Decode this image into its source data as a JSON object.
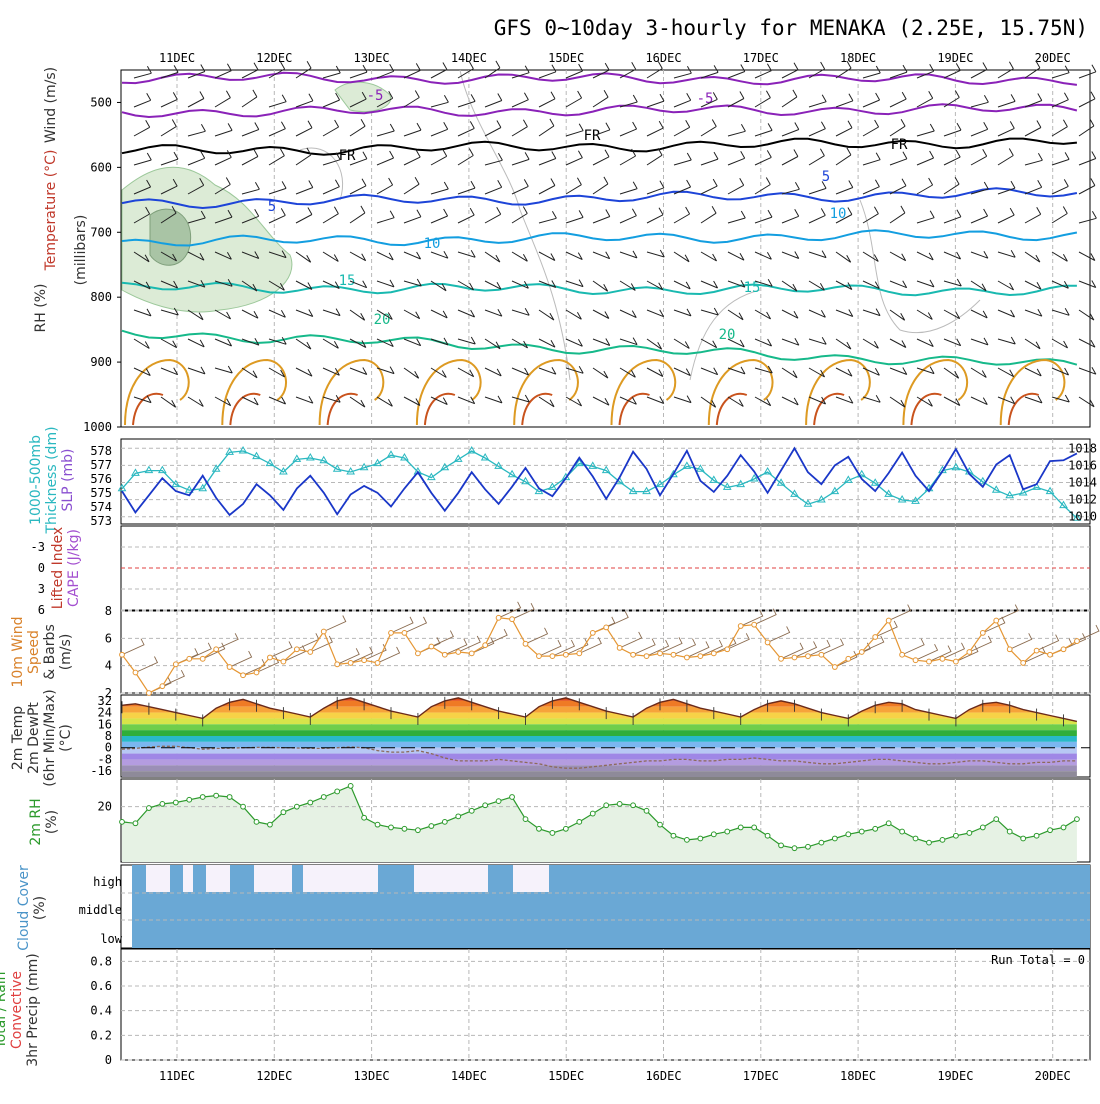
{
  "title": "GFS 0~10day 3-hourly for MENAKA (2.25E, 15.75N)",
  "colors": {
    "purple": "#8a22b8",
    "black": "#000000",
    "blue": "#1d44d8",
    "lightblue": "#139ee0",
    "teal": "#19b9b0",
    "green": "#16b98a",
    "orange": "#dd9a22",
    "dark_orange": "#c9531d",
    "slp": "#1a37c8",
    "thickness": "#2ab8c0",
    "wind10m": "#e59633",
    "barb": "#8a6b4f",
    "rh": "#2c9a2c",
    "rh_fill": "#e6f2e4",
    "cloud": "#6aa8d5",
    "cloud_gap": "#f6f2fb",
    "grid": "#b8b8b8",
    "dewpt": "#8c6a5a"
  },
  "chart_data": [
    {
      "panel": "upper-air",
      "type": "line",
      "x_labels": [
        "11DEC",
        "12DEC",
        "13DEC",
        "14DEC",
        "15DEC",
        "16DEC",
        "17DEC",
        "18DEC",
        "19DEC",
        "20DEC"
      ],
      "ylabel": "(millibars)",
      "side_labels": [
        "Wind (m/s)",
        "Temperature (°C)",
        "RH (%)"
      ],
      "yticks": [
        500,
        600,
        700,
        800,
        900,
        1000
      ],
      "ylim": [
        1000,
        450
      ],
      "contour_labels": [
        {
          "text": "-5",
          "series": "-5"
        },
        {
          "text": "-5",
          "series": "-5"
        },
        {
          "text": "FR",
          "series": "FR"
        },
        {
          "text": "FR",
          "series": "FR"
        },
        {
          "text": "FR",
          "series": "FR"
        },
        {
          "text": "5",
          "series": "5"
        },
        {
          "text": "5",
          "series": "5"
        },
        {
          "text": "10",
          "series": "10"
        },
        {
          "text": "10",
          "series": "10"
        },
        {
          "text": "15",
          "series": "15"
        },
        {
          "text": "15",
          "series": "15"
        },
        {
          "text": "20",
          "series": "20"
        },
        {
          "text": "20",
          "series": "20"
        }
      ],
      "isotherms": [
        {
          "name": "-5",
          "color": "purple",
          "p_start": 515,
          "p_end": 510
        },
        {
          "name": "-5",
          "color": "purple",
          "p_start": 462,
          "p_end": 465
        },
        {
          "name": "FR",
          "color": "black",
          "p_start": 575,
          "p_end": 560
        },
        {
          "name": "5",
          "color": "blue",
          "p_start": 655,
          "p_end": 640
        },
        {
          "name": "10",
          "color": "lightblue",
          "p_start": 715,
          "p_end": 703
        },
        {
          "name": "15",
          "color": "teal",
          "p_start": 785,
          "p_end": 790
        },
        {
          "name": "20",
          "color": "green",
          "p_start": 855,
          "p_end": 905
        }
      ]
    },
    {
      "panel": "thickness-slp",
      "type": "line",
      "side_labels": [
        "1000-500mb",
        "Thickness (dm)",
        "SLP (mb)"
      ],
      "left_ticks": [
        573,
        574,
        575,
        576,
        577,
        578
      ],
      "right_ticks": [
        1010,
        1012,
        1014,
        1016,
        1018
      ],
      "series": [
        {
          "name": "SLP",
          "color": "slp",
          "values": [
            1013,
            1010.5,
            1012.5,
            1014.5,
            1013,
            1012.5,
            1014.8,
            1012.2,
            1010.2,
            1011.5,
            1013.8,
            1012.5,
            1010.8,
            1013.3,
            1014.8,
            1012.8,
            1010.3,
            1012.6,
            1013.6,
            1012.8,
            1011.2,
            1013.3,
            1015.2,
            1012.8,
            1010.7,
            1012.8,
            1015.2,
            1013.2,
            1011.5,
            1013.5,
            1015.7,
            1013.3,
            1012.4,
            1014.5,
            1016.9,
            1014.7,
            1012.1,
            1014.6,
            1017.6,
            1015.6,
            1012.5,
            1015.0,
            1017.7,
            1014.2,
            1012.9,
            1014.8,
            1017.2,
            1015.3,
            1012.8,
            1015.4,
            1018.0,
            1015.2,
            1013.8,
            1016.0,
            1017.0,
            1014.4,
            1013.0,
            1015.1,
            1017.5,
            1014.8,
            1013.0,
            1015.3,
            1017.9,
            1015.0,
            1013.5,
            1016.1,
            1017.2,
            1013.2,
            1013.8,
            1016.5,
            1016.6,
            1017.4
          ]
        },
        {
          "name": "Thickness",
          "color": "thickness",
          "values": [
            575.3,
            576.4,
            576.6,
            576.6,
            575.6,
            575.2,
            575.3,
            576.7,
            577.9,
            578.0,
            577.6,
            577.1,
            576.5,
            577.4,
            577.5,
            577.3,
            576.7,
            576.5,
            576.8,
            577.1,
            577.7,
            577.5,
            576.5,
            576.1,
            576.8,
            577.4,
            578.0,
            577.5,
            576.9,
            576.3,
            575.8,
            575.1,
            575.4,
            576.1,
            577.1,
            576.9,
            576.6,
            575.8,
            575.1,
            575.1,
            575.6,
            576.3,
            576.9,
            576.7,
            575.9,
            575.4,
            575.6,
            576.0,
            576.5,
            575.7,
            574.9,
            574.2,
            574.5,
            575.1,
            575.9,
            576.3,
            575.7,
            574.9,
            574.5,
            574.4,
            575.3,
            576.6,
            576.8,
            576.5,
            575.8,
            575.2,
            574.8,
            575.0,
            575.4,
            575.1,
            574.1,
            573.2
          ]
        }
      ]
    },
    {
      "panel": "instability",
      "type": "line",
      "side_labels": [
        "Lifted Index",
        "CAPE (J/kg)"
      ],
      "yticks": [
        -3,
        0,
        3,
        6
      ],
      "ylim": [
        -6,
        6
      ],
      "zero_line": 0
    },
    {
      "panel": "surface-wind",
      "type": "line",
      "side_labels": [
        "10m Wind",
        "Speed",
        "& Barbs",
        "(m/s)"
      ],
      "yticks": [
        2,
        4,
        6,
        8
      ],
      "ylim": [
        2,
        8
      ],
      "series": [
        {
          "name": "Speed",
          "color": "wind10m",
          "values": [
            4.8,
            3.5,
            2.0,
            2.5,
            4.1,
            4.5,
            4.5,
            5.2,
            3.9,
            3.3,
            3.5,
            4.6,
            4.3,
            5.2,
            5.0,
            6.5,
            4.1,
            4.2,
            4.4,
            4.2,
            6.4,
            6.4,
            4.9,
            5.4,
            4.8,
            5.0,
            4.9,
            5.5,
            7.5,
            7.4,
            5.6,
            4.7,
            4.7,
            4.8,
            4.9,
            6.4,
            6.8,
            5.3,
            4.8,
            4.7,
            4.9,
            4.8,
            4.6,
            4.7,
            4.9,
            5.2,
            6.9,
            7.0,
            5.7,
            4.5,
            4.6,
            4.7,
            4.8,
            3.9,
            4.5,
            5.0,
            6.1,
            7.3,
            4.8,
            4.4,
            4.3,
            4.5,
            4.3,
            5.0,
            6.4,
            7.3,
            5.2,
            4.2,
            5.1,
            4.8,
            5.2,
            5.8
          ]
        }
      ]
    },
    {
      "panel": "temperature",
      "type": "area",
      "side_labels": [
        "2m Temp",
        "2m DewPt",
        "(6hr Min/Max)",
        "(°C)"
      ],
      "yticks": [
        -16,
        -8,
        0,
        8,
        16,
        24,
        32
      ],
      "ylim": [
        -20,
        36
      ],
      "series": [
        {
          "name": "2m Temp",
          "values": [
            29,
            30,
            28,
            26,
            24,
            22,
            20,
            27,
            31,
            33,
            30,
            27,
            25,
            23,
            21,
            27,
            32,
            34,
            31,
            28,
            25,
            23,
            21,
            28,
            32,
            34,
            31,
            28,
            25,
            23,
            21,
            28,
            32,
            34,
            31,
            28,
            25,
            23,
            21,
            27,
            31,
            33,
            30,
            27,
            25,
            23,
            21,
            26,
            30,
            32,
            30,
            27,
            24,
            22,
            20,
            25,
            29,
            31,
            30,
            26,
            24,
            22,
            20,
            26,
            30,
            31,
            29,
            26,
            24,
            22,
            20,
            18
          ]
        },
        {
          "name": "2m DewPt",
          "values": [
            -1,
            -0.5,
            0.5,
            1,
            1,
            0,
            -1,
            -0.5,
            -0.3,
            0,
            0.2,
            0.2,
            0,
            -0.2,
            -0.5,
            -0.5,
            0,
            0.5,
            0,
            -2,
            -3,
            -3,
            -2,
            -4,
            -7,
            -9,
            -9,
            -9,
            -8,
            -9,
            -10,
            -11,
            -13,
            -14,
            -14,
            -13,
            -12,
            -11,
            -10,
            -9,
            -9,
            -8,
            -8,
            -9,
            -9,
            -8,
            -8,
            -7,
            -8,
            -9,
            -9,
            -10,
            -11,
            -11,
            -10,
            -9,
            -8,
            -8,
            -9,
            -10,
            -11,
            -11,
            -10,
            -9,
            -9,
            -10,
            -11,
            -11,
            -10,
            -10,
            -9,
            -9
          ]
        }
      ]
    },
    {
      "panel": "relative-humidity",
      "type": "area",
      "side_labels": [
        "2m RH",
        "(%)"
      ],
      "yticks": [
        20
      ],
      "ylim": [
        0,
        30
      ],
      "series": [
        {
          "name": "2m RH",
          "color": "rh",
          "values": [
            14.5,
            14.0,
            19.5,
            21.0,
            21.5,
            22.5,
            23.5,
            24.0,
            23.5,
            20.0,
            14.5,
            13.5,
            18.0,
            20.0,
            21.5,
            23.5,
            25.5,
            27.5,
            16.0,
            13.5,
            12.5,
            12.0,
            11.5,
            13.0,
            14.5,
            16.5,
            18.5,
            20.5,
            22.0,
            23.5,
            15.5,
            12.0,
            10.5,
            12.0,
            14.5,
            17.5,
            20.5,
            21.0,
            20.5,
            18.5,
            13.5,
            9.5,
            8.0,
            8.5,
            10.0,
            11.0,
            12.5,
            12.5,
            9.5,
            6.0,
            5.0,
            5.5,
            7.0,
            8.5,
            10.0,
            11.0,
            12.0,
            14.0,
            11.0,
            8.5,
            7.0,
            8.0,
            9.5,
            10.5,
            12.5,
            15.5,
            11.0,
            8.5,
            9.5,
            11.5,
            12.5,
            15.5
          ]
        }
      ]
    },
    {
      "panel": "cloud-cover",
      "type": "bar",
      "side_labels": [
        "Cloud Cover",
        "(%)"
      ],
      "ytick_labels": [
        "high",
        "middle",
        "low"
      ],
      "ylim": [
        0,
        300
      ]
    },
    {
      "panel": "precipitation",
      "type": "bar",
      "side_labels": [
        "Total / Rain",
        "Convective",
        "3hr Precip (mm)"
      ],
      "yticks": [
        0,
        0.2,
        0.4,
        0.6,
        0.8
      ],
      "ylim": [
        0,
        0.9
      ],
      "run_total": "Run Total = 0"
    }
  ]
}
